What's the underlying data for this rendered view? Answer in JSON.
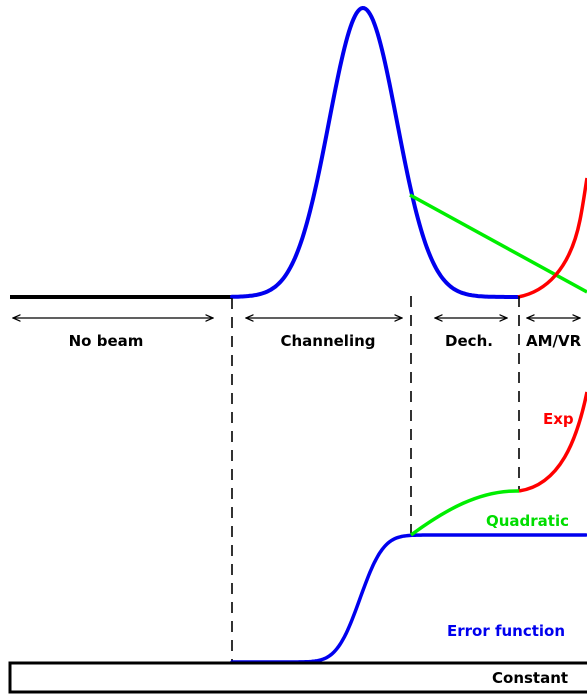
{
  "regions": [
    {
      "id": "no-beam",
      "label": "No beam"
    },
    {
      "id": "channeling",
      "label": "Channeling"
    },
    {
      "id": "dechanneling",
      "label": "Dech."
    },
    {
      "id": "amvr",
      "label": "AM/VR"
    }
  ],
  "components": {
    "exp": {
      "label": "Exp",
      "color": "#ff0000"
    },
    "quadratic": {
      "label": "Quadratic",
      "color": "#00ee00"
    },
    "error_function": {
      "label": "Error function",
      "color": "#0000ee"
    },
    "constant": {
      "label": "Constant",
      "color": "#000000"
    }
  },
  "colors": {
    "gaussian": "#0000ee",
    "baseline": "#000000",
    "linear": "#00ee00",
    "exp": "#ff0000"
  }
}
